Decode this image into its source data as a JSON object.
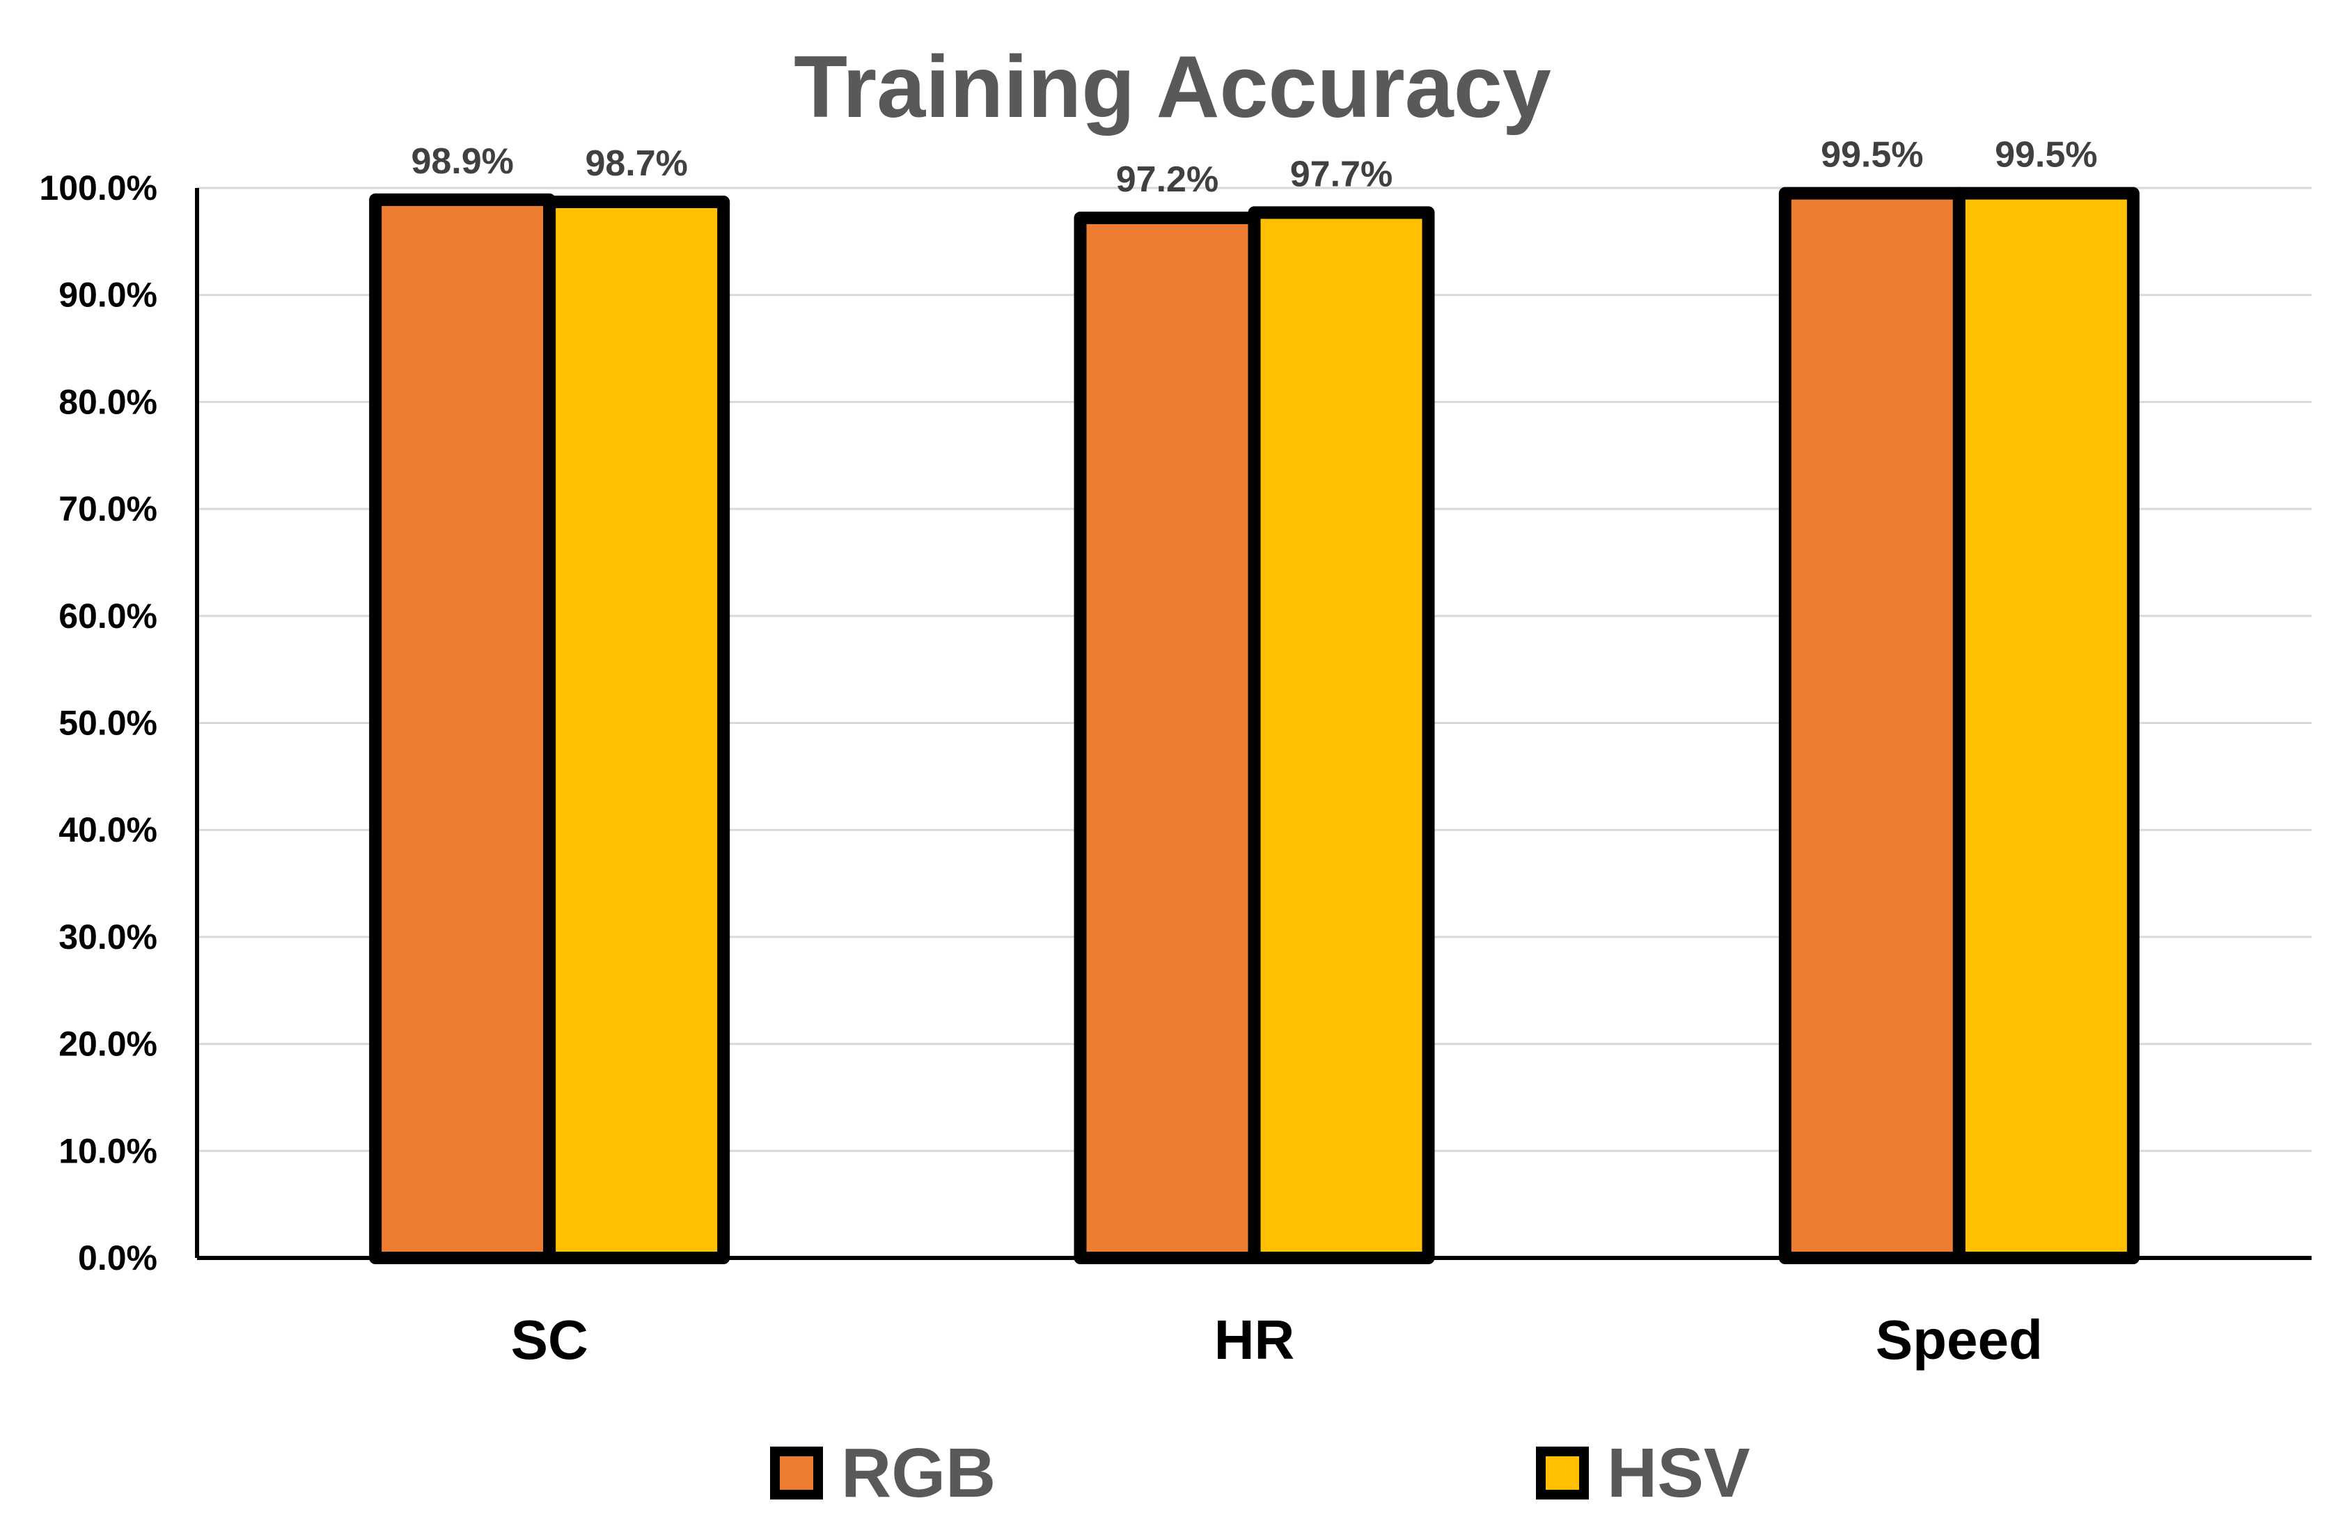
{
  "chart_data": {
    "type": "bar",
    "title": "Training Accuracy",
    "xlabel": "",
    "ylabel": "",
    "categories": [
      "SC",
      "HR",
      "Speed"
    ],
    "series": [
      {
        "name": "RGB",
        "values": [
          98.9,
          97.2,
          99.5
        ],
        "labels": [
          "98.9%",
          "97.2%",
          "99.5%"
        ],
        "color": "#ED7D31"
      },
      {
        "name": "HSV",
        "values": [
          98.7,
          97.7,
          99.5
        ],
        "labels": [
          "98.7%",
          "97.7%",
          "99.5%"
        ],
        "color": "#FFC000"
      }
    ],
    "ylim": [
      0,
      100
    ],
    "yticks": [
      0,
      10,
      20,
      30,
      40,
      50,
      60,
      70,
      80,
      90,
      100
    ],
    "ytick_labels": [
      "0.0%",
      "10.0%",
      "20.0%",
      "30.0%",
      "40.0%",
      "50.0%",
      "60.0%",
      "70.0%",
      "80.0%",
      "90.0%",
      "100.0%"
    ],
    "grid": true,
    "legend": "bottom"
  }
}
